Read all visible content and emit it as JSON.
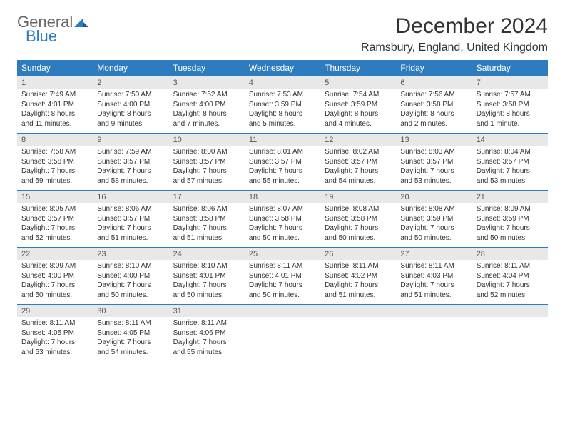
{
  "logo": {
    "line1": "General",
    "line2": "Blue"
  },
  "title": "December 2024",
  "location": "Ramsbury, England, United Kingdom",
  "colors": {
    "header_bg": "#2e7cc0",
    "header_text": "#ffffff",
    "daynum_bg": "#e8e8e8",
    "border": "#2e7cc0",
    "body_bg": "#ffffff",
    "text": "#333333"
  },
  "dayNames": [
    "Sunday",
    "Monday",
    "Tuesday",
    "Wednesday",
    "Thursday",
    "Friday",
    "Saturday"
  ],
  "weeks": [
    [
      {
        "n": "1",
        "sr": "7:49 AM",
        "ss": "4:01 PM",
        "dh": "8",
        "dm": "11"
      },
      {
        "n": "2",
        "sr": "7:50 AM",
        "ss": "4:00 PM",
        "dh": "8",
        "dm": "9"
      },
      {
        "n": "3",
        "sr": "7:52 AM",
        "ss": "4:00 PM",
        "dh": "8",
        "dm": "7"
      },
      {
        "n": "4",
        "sr": "7:53 AM",
        "ss": "3:59 PM",
        "dh": "8",
        "dm": "5"
      },
      {
        "n": "5",
        "sr": "7:54 AM",
        "ss": "3:59 PM",
        "dh": "8",
        "dm": "4"
      },
      {
        "n": "6",
        "sr": "7:56 AM",
        "ss": "3:58 PM",
        "dh": "8",
        "dm": "2"
      },
      {
        "n": "7",
        "sr": "7:57 AM",
        "ss": "3:58 PM",
        "dh": "8",
        "dm": "1"
      }
    ],
    [
      {
        "n": "8",
        "sr": "7:58 AM",
        "ss": "3:58 PM",
        "dh": "7",
        "dm": "59"
      },
      {
        "n": "9",
        "sr": "7:59 AM",
        "ss": "3:57 PM",
        "dh": "7",
        "dm": "58"
      },
      {
        "n": "10",
        "sr": "8:00 AM",
        "ss": "3:57 PM",
        "dh": "7",
        "dm": "57"
      },
      {
        "n": "11",
        "sr": "8:01 AM",
        "ss": "3:57 PM",
        "dh": "7",
        "dm": "55"
      },
      {
        "n": "12",
        "sr": "8:02 AM",
        "ss": "3:57 PM",
        "dh": "7",
        "dm": "54"
      },
      {
        "n": "13",
        "sr": "8:03 AM",
        "ss": "3:57 PM",
        "dh": "7",
        "dm": "53"
      },
      {
        "n": "14",
        "sr": "8:04 AM",
        "ss": "3:57 PM",
        "dh": "7",
        "dm": "53"
      }
    ],
    [
      {
        "n": "15",
        "sr": "8:05 AM",
        "ss": "3:57 PM",
        "dh": "7",
        "dm": "52"
      },
      {
        "n": "16",
        "sr": "8:06 AM",
        "ss": "3:57 PM",
        "dh": "7",
        "dm": "51"
      },
      {
        "n": "17",
        "sr": "8:06 AM",
        "ss": "3:58 PM",
        "dh": "7",
        "dm": "51"
      },
      {
        "n": "18",
        "sr": "8:07 AM",
        "ss": "3:58 PM",
        "dh": "7",
        "dm": "50"
      },
      {
        "n": "19",
        "sr": "8:08 AM",
        "ss": "3:58 PM",
        "dh": "7",
        "dm": "50"
      },
      {
        "n": "20",
        "sr": "8:08 AM",
        "ss": "3:59 PM",
        "dh": "7",
        "dm": "50"
      },
      {
        "n": "21",
        "sr": "8:09 AM",
        "ss": "3:59 PM",
        "dh": "7",
        "dm": "50"
      }
    ],
    [
      {
        "n": "22",
        "sr": "8:09 AM",
        "ss": "4:00 PM",
        "dh": "7",
        "dm": "50"
      },
      {
        "n": "23",
        "sr": "8:10 AM",
        "ss": "4:00 PM",
        "dh": "7",
        "dm": "50"
      },
      {
        "n": "24",
        "sr": "8:10 AM",
        "ss": "4:01 PM",
        "dh": "7",
        "dm": "50"
      },
      {
        "n": "25",
        "sr": "8:11 AM",
        "ss": "4:01 PM",
        "dh": "7",
        "dm": "50"
      },
      {
        "n": "26",
        "sr": "8:11 AM",
        "ss": "4:02 PM",
        "dh": "7",
        "dm": "51"
      },
      {
        "n": "27",
        "sr": "8:11 AM",
        "ss": "4:03 PM",
        "dh": "7",
        "dm": "51"
      },
      {
        "n": "28",
        "sr": "8:11 AM",
        "ss": "4:04 PM",
        "dh": "7",
        "dm": "52"
      }
    ],
    [
      {
        "n": "29",
        "sr": "8:11 AM",
        "ss": "4:05 PM",
        "dh": "7",
        "dm": "53"
      },
      {
        "n": "30",
        "sr": "8:11 AM",
        "ss": "4:05 PM",
        "dh": "7",
        "dm": "54"
      },
      {
        "n": "31",
        "sr": "8:11 AM",
        "ss": "4:06 PM",
        "dh": "7",
        "dm": "55"
      },
      null,
      null,
      null,
      null
    ]
  ],
  "labels": {
    "sunrise": "Sunrise:",
    "sunset": "Sunset:",
    "daylight": "Daylight:",
    "hours": "hours",
    "and": "and",
    "minutes": "minutes.",
    "minute": "minute."
  }
}
